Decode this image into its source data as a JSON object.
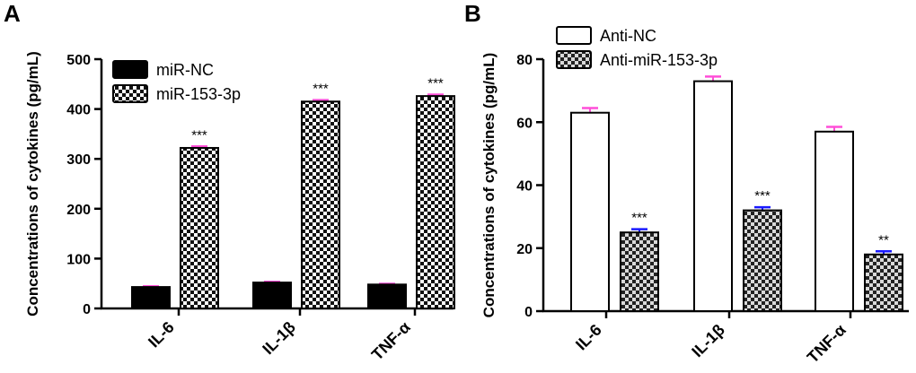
{
  "chart_data": [
    {
      "panel": "A",
      "type": "bar",
      "ylabel": "Concentrations of cytokines (pg/mL)",
      "ylim": [
        0,
        500
      ],
      "yticks": [
        0,
        100,
        200,
        300,
        400,
        500
      ],
      "categories": [
        "IL-6",
        "IL-1β",
        "TNF-α"
      ],
      "legend_position": "top-left",
      "series": [
        {
          "name": "miR-NC",
          "values": [
            43,
            52,
            48
          ],
          "errors": [
            1.5,
            1.5,
            1.5
          ],
          "fill": "solid",
          "color": "#000000",
          "error_color": "#ff4fd8",
          "significance": [
            "",
            "",
            ""
          ]
        },
        {
          "name": "miR-153-3p",
          "values": [
            322,
            415,
            426
          ],
          "errors": [
            3,
            3,
            3
          ],
          "fill": "checker",
          "color": "#000000",
          "error_color": "#ff4fd8",
          "significance": [
            "***",
            "***",
            "***"
          ]
        }
      ]
    },
    {
      "panel": "B",
      "type": "bar",
      "ylabel": "Concentrations of cytokines (pg/mL)",
      "ylim": [
        0,
        80
      ],
      "yticks": [
        0,
        20,
        40,
        60,
        80
      ],
      "categories": [
        "IL-6",
        "IL-1β",
        "TNF-α"
      ],
      "legend_position": "top-left",
      "series": [
        {
          "name": "Anti-NC",
          "values": [
            63,
            73,
            57
          ],
          "errors": [
            1.5,
            1.5,
            1.5
          ],
          "fill": "white",
          "color": "#000000",
          "error_color": "#ff4fd8",
          "significance": [
            "",
            "",
            ""
          ]
        },
        {
          "name": "Anti-miR-153-3p",
          "values": [
            25,
            32,
            18
          ],
          "errors": [
            1,
            1,
            1
          ],
          "fill": "checker-gray",
          "color": "#000000",
          "error_color": "#1a1aff",
          "significance": [
            "***",
            "***",
            "**"
          ]
        }
      ]
    }
  ]
}
